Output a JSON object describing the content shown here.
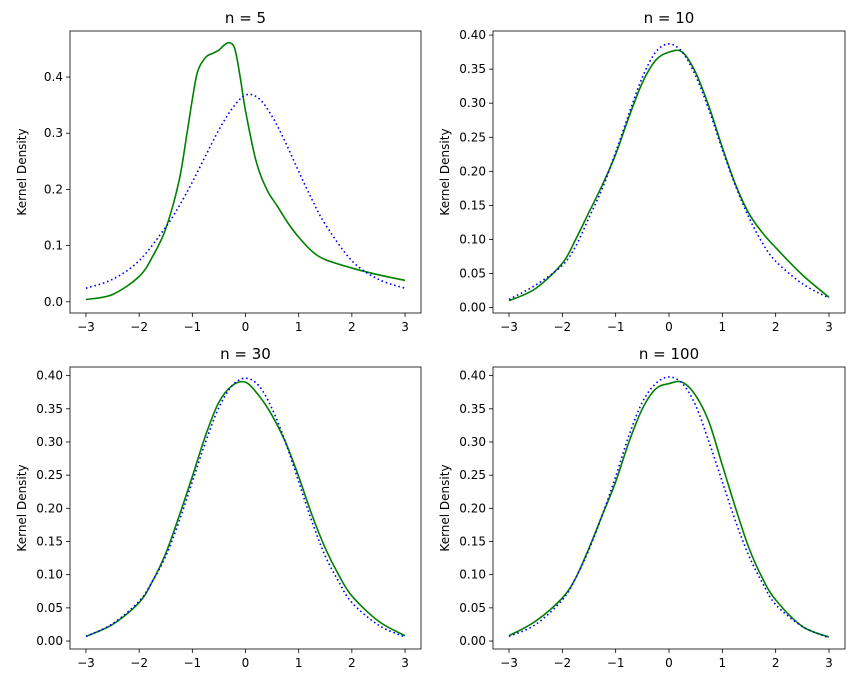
{
  "chart_data": [
    {
      "type": "line",
      "title": "n = 5",
      "ylabel": "Kernel Density",
      "xlim": [
        -3.3,
        3.3
      ],
      "ylim": [
        -0.02,
        0.482
      ],
      "xticks": [
        -3,
        -2,
        -1,
        0,
        1,
        2,
        3
      ],
      "xtick_labels": [
        "−3",
        "−2",
        "−1",
        "0",
        "1",
        "2",
        "3"
      ],
      "yticks": [
        0.0,
        0.1,
        0.2,
        0.3,
        0.4
      ],
      "ytick_labels": [
        "0.0",
        "0.1",
        "0.2",
        "0.3",
        "0.4"
      ],
      "series": [
        {
          "color": "#008000",
          "style": "solid",
          "x": [
            -3,
            -2.5,
            -2,
            -1.75,
            -1.5,
            -1.25,
            -1.1,
            -1,
            -0.9,
            -0.75,
            -0.6,
            -0.5,
            -0.4,
            -0.3,
            -0.2,
            -0.1,
            0,
            0.2,
            0.4,
            0.6,
            0.8,
            1,
            1.25,
            1.5,
            2,
            2.5,
            3
          ],
          "y": [
            0.004,
            0.013,
            0.045,
            0.08,
            0.13,
            0.215,
            0.3,
            0.36,
            0.41,
            0.435,
            0.443,
            0.448,
            0.457,
            0.461,
            0.45,
            0.4,
            0.34,
            0.25,
            0.2,
            0.17,
            0.14,
            0.115,
            0.09,
            0.075,
            0.06,
            0.048,
            0.038
          ]
        },
        {
          "color": "#0000ff",
          "style": "dotted",
          "x": [
            -3,
            -2.5,
            -2,
            -1.5,
            -1.25,
            -1,
            -0.75,
            -0.5,
            -0.25,
            0,
            0.25,
            0.5,
            0.75,
            1,
            1.25,
            1.5,
            2,
            2.5,
            3
          ],
          "y": [
            0.024,
            0.04,
            0.073,
            0.133,
            0.17,
            0.213,
            0.26,
            0.306,
            0.344,
            0.368,
            0.362,
            0.33,
            0.284,
            0.232,
            0.182,
            0.138,
            0.073,
            0.04,
            0.024
          ]
        }
      ]
    },
    {
      "type": "line",
      "title": "n = 10",
      "ylabel": "Kernel Density",
      "xlim": [
        -3.3,
        3.3
      ],
      "ylim": [
        -0.008,
        0.406
      ],
      "xticks": [
        -3,
        -2,
        -1,
        0,
        1,
        2,
        3
      ],
      "xtick_labels": [
        "−3",
        "−2",
        "−1",
        "0",
        "1",
        "2",
        "3"
      ],
      "yticks": [
        0.0,
        0.05,
        0.1,
        0.15,
        0.2,
        0.25,
        0.3,
        0.35,
        0.4
      ],
      "ytick_labels": [
        "0.00",
        "0.05",
        "0.10",
        "0.15",
        "0.20",
        "0.25",
        "0.30",
        "0.35",
        "0.40"
      ],
      "series": [
        {
          "color": "#008000",
          "style": "solid",
          "x": [
            -3,
            -2.5,
            -2,
            -1.75,
            -1.5,
            -1.25,
            -1,
            -0.75,
            -0.5,
            -0.25,
            0,
            0.25,
            0.5,
            0.75,
            1,
            1.25,
            1.5,
            1.75,
            2,
            2.5,
            3
          ],
          "y": [
            0.01,
            0.028,
            0.065,
            0.1,
            0.14,
            0.18,
            0.225,
            0.28,
            0.33,
            0.363,
            0.375,
            0.375,
            0.345,
            0.295,
            0.235,
            0.18,
            0.138,
            0.11,
            0.088,
            0.048,
            0.015
          ]
        },
        {
          "color": "#0000ff",
          "style": "dotted",
          "x": [
            -3,
            -2.5,
            -2,
            -1.75,
            -1.5,
            -1.25,
            -1,
            -0.75,
            -0.5,
            -0.25,
            0,
            0.25,
            0.5,
            0.75,
            1,
            1.25,
            1.5,
            1.75,
            2,
            2.5,
            3
          ],
          "y": [
            0.012,
            0.033,
            0.062,
            0.09,
            0.132,
            0.175,
            0.228,
            0.285,
            0.338,
            0.375,
            0.387,
            0.375,
            0.34,
            0.29,
            0.232,
            0.178,
            0.132,
            0.095,
            0.068,
            0.035,
            0.014
          ]
        }
      ]
    },
    {
      "type": "line",
      "title": "n = 30",
      "ylabel": "Kernel Density",
      "xlim": [
        -3.3,
        3.3
      ],
      "ylim": [
        -0.012,
        0.413
      ],
      "xticks": [
        -3,
        -2,
        -1,
        0,
        1,
        2,
        3
      ],
      "xtick_labels": [
        "−3",
        "−2",
        "−1",
        "0",
        "1",
        "2",
        "3"
      ],
      "yticks": [
        0.0,
        0.05,
        0.1,
        0.15,
        0.2,
        0.25,
        0.3,
        0.35,
        0.4
      ],
      "ytick_labels": [
        "0.00",
        "0.05",
        "0.10",
        "0.15",
        "0.20",
        "0.25",
        "0.30",
        "0.35",
        "0.40"
      ],
      "series": [
        {
          "color": "#008000",
          "style": "solid",
          "x": [
            -3,
            -2.5,
            -2,
            -1.75,
            -1.5,
            -1.25,
            -1,
            -0.75,
            -0.5,
            -0.25,
            0,
            0.25,
            0.5,
            0.75,
            1,
            1.25,
            1.5,
            1.75,
            2,
            2.5,
            3
          ],
          "y": [
            0.007,
            0.025,
            0.058,
            0.09,
            0.132,
            0.188,
            0.248,
            0.31,
            0.36,
            0.385,
            0.39,
            0.37,
            0.34,
            0.3,
            0.248,
            0.19,
            0.14,
            0.1,
            0.068,
            0.03,
            0.008
          ]
        },
        {
          "color": "#0000ff",
          "style": "dotted",
          "x": [
            -3,
            -2.5,
            -2,
            -1.75,
            -1.5,
            -1.25,
            -1,
            -0.75,
            -0.5,
            -0.25,
            0,
            0.25,
            0.5,
            0.75,
            1,
            1.25,
            1.5,
            1.75,
            2,
            2.5,
            3
          ],
          "y": [
            0.007,
            0.026,
            0.06,
            0.09,
            0.128,
            0.18,
            0.24,
            0.3,
            0.352,
            0.385,
            0.396,
            0.385,
            0.35,
            0.3,
            0.24,
            0.18,
            0.128,
            0.09,
            0.058,
            0.024,
            0.006
          ]
        }
      ]
    },
    {
      "type": "line",
      "title": "n = 100",
      "ylabel": "Kernel Density",
      "xlim": [
        -3.3,
        3.3
      ],
      "ylim": [
        -0.012,
        0.413
      ],
      "xticks": [
        -3,
        -2,
        -1,
        0,
        1,
        2,
        3
      ],
      "xtick_labels": [
        "−3",
        "−2",
        "−1",
        "0",
        "1",
        "2",
        "3"
      ],
      "yticks": [
        0.0,
        0.05,
        0.1,
        0.15,
        0.2,
        0.25,
        0.3,
        0.35,
        0.4
      ],
      "ytick_labels": [
        "0.00",
        "0.05",
        "0.10",
        "0.15",
        "0.20",
        "0.25",
        "0.30",
        "0.35",
        "0.40"
      ],
      "series": [
        {
          "color": "#008000",
          "style": "solid",
          "x": [
            -3,
            -2.5,
            -2,
            -1.75,
            -1.5,
            -1.25,
            -1,
            -0.75,
            -0.5,
            -0.25,
            0,
            0.25,
            0.5,
            0.75,
            1,
            1.25,
            1.5,
            1.75,
            2,
            2.5,
            3
          ],
          "y": [
            0.008,
            0.03,
            0.065,
            0.095,
            0.14,
            0.19,
            0.24,
            0.3,
            0.35,
            0.38,
            0.388,
            0.39,
            0.37,
            0.33,
            0.265,
            0.2,
            0.14,
            0.095,
            0.062,
            0.022,
            0.006
          ]
        },
        {
          "color": "#0000ff",
          "style": "dotted",
          "x": [
            -3,
            -2.5,
            -2,
            -1.75,
            -1.5,
            -1.25,
            -1,
            -0.75,
            -0.5,
            -0.25,
            0,
            0.25,
            0.5,
            0.75,
            1,
            1.25,
            1.5,
            1.75,
            2,
            2.5,
            3
          ],
          "y": [
            0.007,
            0.025,
            0.062,
            0.095,
            0.138,
            0.19,
            0.248,
            0.31,
            0.36,
            0.388,
            0.398,
            0.388,
            0.355,
            0.3,
            0.24,
            0.18,
            0.128,
            0.088,
            0.055,
            0.022,
            0.005
          ]
        }
      ]
    }
  ]
}
